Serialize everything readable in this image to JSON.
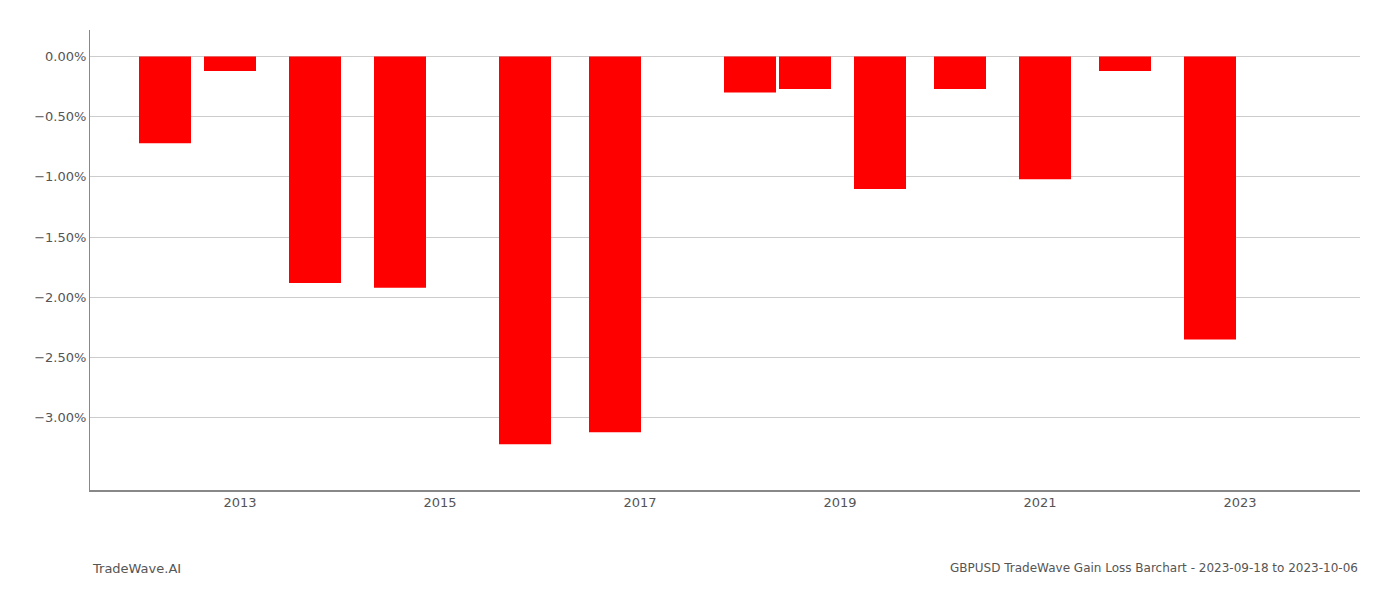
{
  "chart_data": {
    "type": "bar",
    "title": "GBPUSD TradeWave Gain Loss Barchart - 2023-09-18 to 2023-10-06",
    "annotations": [
      "TradeWave.AI"
    ],
    "x": [
      2012.25,
      2012.9,
      2013.75,
      2014.6,
      2015.85,
      2016.75,
      2018.1,
      2018.65,
      2019.4,
      2020.2,
      2021.05,
      2021.85,
      2022.7
    ],
    "values": [
      -0.72,
      -0.12,
      -1.88,
      -1.92,
      -3.22,
      -3.12,
      -0.3,
      -0.27,
      -1.1,
      -0.27,
      -1.02,
      -0.12,
      -2.35
    ],
    "color": "#ff0000",
    "xlim": [
      2011.5,
      2024.2
    ],
    "xticks": [
      2013,
      2015,
      2017,
      2019,
      2021,
      2023
    ],
    "ylim": [
      -3.6,
      0.22
    ],
    "yticks": [
      {
        "value": 0.0,
        "label": "0.00%"
      },
      {
        "value": -0.5,
        "label": "−0.50%"
      },
      {
        "value": -1.0,
        "label": "−1.00%"
      },
      {
        "value": -1.5,
        "label": "−1.50%"
      },
      {
        "value": -2.0,
        "label": "−2.00%"
      },
      {
        "value": -2.5,
        "label": "−2.50%"
      },
      {
        "value": -3.0,
        "label": "−3.00%"
      }
    ],
    "grid": true
  }
}
